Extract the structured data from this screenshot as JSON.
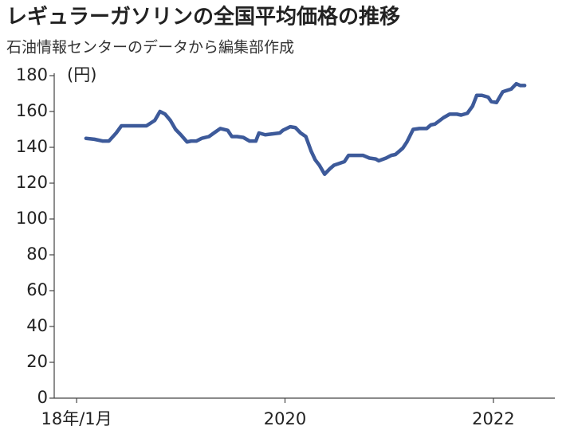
{
  "chart_data": {
    "type": "line",
    "title": "レギュラーガソリンの全国平均価格の推移",
    "subtitle": "石油情報センターのデータから編集部作成",
    "y_unit_label": "(円)",
    "x": [
      2018.09,
      2018.17,
      2018.25,
      2018.31,
      2018.38,
      2018.43,
      2018.53,
      2018.67,
      2018.75,
      2018.8,
      2018.85,
      2018.9,
      2018.95,
      2019.0,
      2019.06,
      2019.1,
      2019.15,
      2019.2,
      2019.27,
      2019.33,
      2019.38,
      2019.45,
      2019.49,
      2019.54,
      2019.6,
      2019.66,
      2019.72,
      2019.75,
      2019.81,
      2019.95,
      2019.98,
      2020.05,
      2020.1,
      2020.15,
      2020.2,
      2020.25,
      2020.29,
      2020.33,
      2020.38,
      2020.43,
      2020.47,
      2020.52,
      2020.57,
      2020.61,
      2020.7,
      2020.75,
      2020.81,
      2020.87,
      2020.9,
      2020.97,
      2021.02,
      2021.06,
      2021.1,
      2021.13,
      2021.17,
      2021.23,
      2021.29,
      2021.36,
      2021.4,
      2021.44,
      2021.52,
      2021.58,
      2021.65,
      2021.69,
      2021.75,
      2021.8,
      2021.84,
      2021.89,
      2021.95,
      2021.98,
      2022.03,
      2022.09,
      2022.17,
      2022.22,
      2022.26,
      2022.3
    ],
    "series": [
      {
        "color": "#3d5a9a",
        "values": [
          145,
          144.5,
          143.5,
          143.5,
          148,
          152,
          152,
          152,
          155,
          160,
          158.5,
          155,
          150,
          147,
          143,
          143.5,
          143.5,
          145,
          146,
          148.5,
          150.5,
          149.5,
          146,
          146,
          145.5,
          143.5,
          143.5,
          148,
          147,
          148,
          149.5,
          151.5,
          151,
          148,
          146,
          138,
          133,
          130,
          125,
          128,
          130,
          131,
          132,
          135.5,
          135.5,
          135.5,
          134,
          133.5,
          132.5,
          134,
          135.5,
          136,
          138,
          139.5,
          143,
          150,
          150.5,
          150.5,
          152.5,
          153,
          156.5,
          158.5,
          158.5,
          158,
          159,
          163,
          169,
          169,
          168,
          165.5,
          165,
          171,
          172.5,
          175.5,
          174.5,
          174.5
        ]
      }
    ],
    "xlim": [
      2017.785,
      2022.59
    ],
    "xticks": [
      {
        "value": 2018,
        "label": "18年/1月"
      },
      2020,
      2022
    ],
    "ylim": [
      0,
      180
    ],
    "yticks": [
      0,
      20,
      40,
      60,
      80,
      100,
      120,
      140,
      160,
      180
    ]
  }
}
